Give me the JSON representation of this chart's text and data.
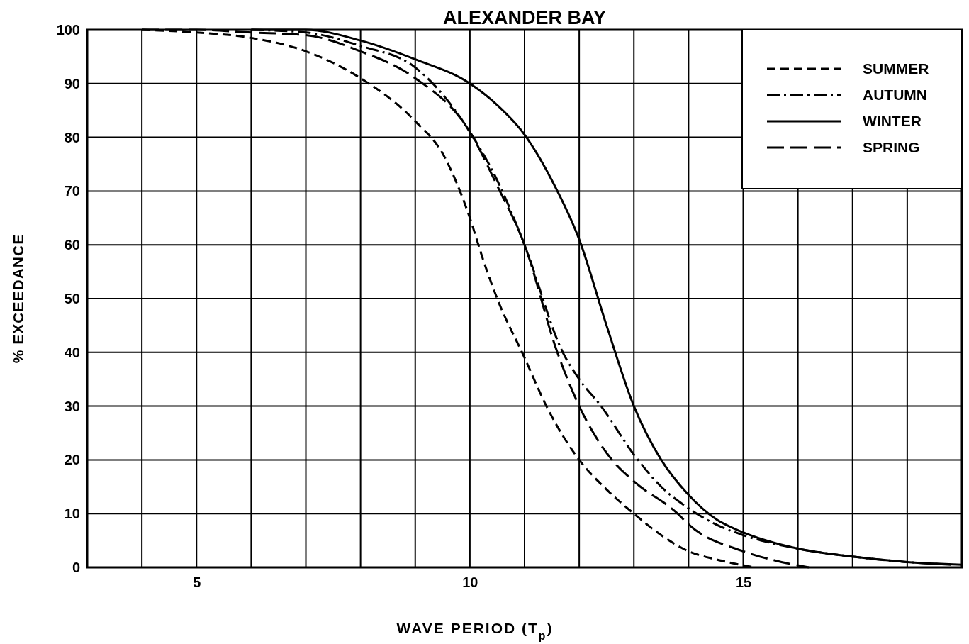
{
  "chart_data": {
    "type": "line",
    "title": "ALEXANDER BAY",
    "xlabel": "WAVE PERIOD (T$_{p}$)",
    "ylabel": "% EXCEEDANCE",
    "xlim": [
      3,
      19
    ],
    "ylim": [
      0,
      100
    ],
    "xticks": [
      {
        "value": 4,
        "label": null
      },
      5,
      {
        "value": 6,
        "label": null
      },
      {
        "value": 7,
        "label": null
      },
      {
        "value": 8,
        "label": null
      },
      {
        "value": 9,
        "label": null
      },
      10,
      {
        "value": 11,
        "label": null
      },
      {
        "value": 12,
        "label": null
      },
      {
        "value": 13,
        "label": null
      },
      {
        "value": 14,
        "label": null
      },
      15,
      {
        "value": 16,
        "label": null
      },
      {
        "value": 17,
        "label": null
      },
      {
        "value": 18,
        "label": null
      }
    ],
    "yticks": [
      0,
      10,
      20,
      30,
      40,
      50,
      60,
      70,
      80,
      90,
      100
    ],
    "grid": true,
    "legend": "top right",
    "marker": "none",
    "series": [
      {
        "name": "SUMMER",
        "color": "#000000",
        "line_style": "dashed",
        "x": [
          4,
          5,
          6,
          7,
          8,
          9,
          9.5,
          10,
          10.25,
          10.5,
          11,
          11.4,
          12,
          12.5,
          13,
          13.5,
          14,
          14.5,
          15.2
        ],
        "values": [
          100,
          99.5,
          98.5,
          96,
          91,
          83,
          77,
          65,
          57,
          50,
          39,
          30,
          20,
          14.5,
          10,
          6,
          3,
          1.5,
          0
        ]
      },
      {
        "name": "AUTUMN",
        "color": "#000000",
        "line_style": "dashdot",
        "x": [
          6,
          7,
          8,
          9,
          9.5,
          10,
          10.5,
          11,
          11.7,
          12,
          12.4,
          13,
          13.5,
          14,
          14.5,
          15,
          16,
          17,
          18,
          18.8
        ],
        "values": [
          100,
          99.5,
          97,
          93,
          88,
          81,
          72,
          60,
          40,
          35,
          30,
          21,
          15,
          11,
          8,
          6,
          3.5,
          2,
          1,
          0.5
        ]
      },
      {
        "name": "WINTER",
        "color": "#000000",
        "line_style": "solid",
        "x": [
          6,
          7,
          8,
          9,
          10,
          10.5,
          11,
          11.5,
          12,
          12.5,
          13,
          13.5,
          14,
          14.5,
          15,
          16,
          17,
          18,
          19
        ],
        "values": [
          100,
          100,
          98,
          94.5,
          90,
          86,
          80.5,
          72,
          61,
          45,
          30,
          20,
          13.5,
          9,
          6.5,
          3.5,
          2,
          1,
          0.5
        ]
      },
      {
        "name": "SPRING",
        "color": "#000000",
        "line_style": "longdash",
        "x": [
          4,
          5,
          6,
          7,
          8,
          9,
          10,
          10.5,
          11,
          11.6,
          12,
          12.6,
          13,
          13.8,
          14,
          15,
          15.7,
          16.2
        ],
        "values": [
          100,
          100,
          99.5,
          99,
          96,
          91,
          81,
          71,
          60,
          40,
          30,
          20,
          16,
          10,
          8,
          3,
          1,
          0
        ]
      }
    ]
  }
}
